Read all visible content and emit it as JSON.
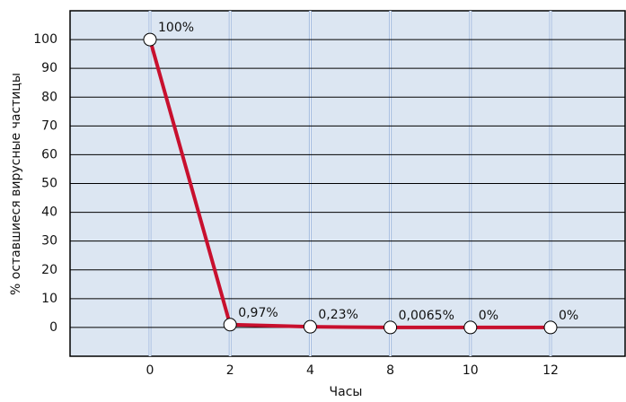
{
  "chart_data": {
    "type": "line",
    "x_label": "Часы",
    "y_label": "% оставшиеся вирусные частицы",
    "categories": [
      "0",
      "2",
      "4",
      "8",
      "10",
      "12"
    ],
    "values": [
      100,
      0.97,
      0.23,
      0.0065,
      0,
      0
    ],
    "value_labels": [
      "100%",
      "0,97%",
      "0,23%",
      "0,0065%",
      "0%",
      "0%"
    ],
    "color": "#c8102e",
    "ylim": [
      -10,
      110
    ],
    "yticks": [
      0,
      10,
      20,
      30,
      40,
      50,
      60,
      70,
      80,
      90,
      100
    ],
    "grid": true
  }
}
